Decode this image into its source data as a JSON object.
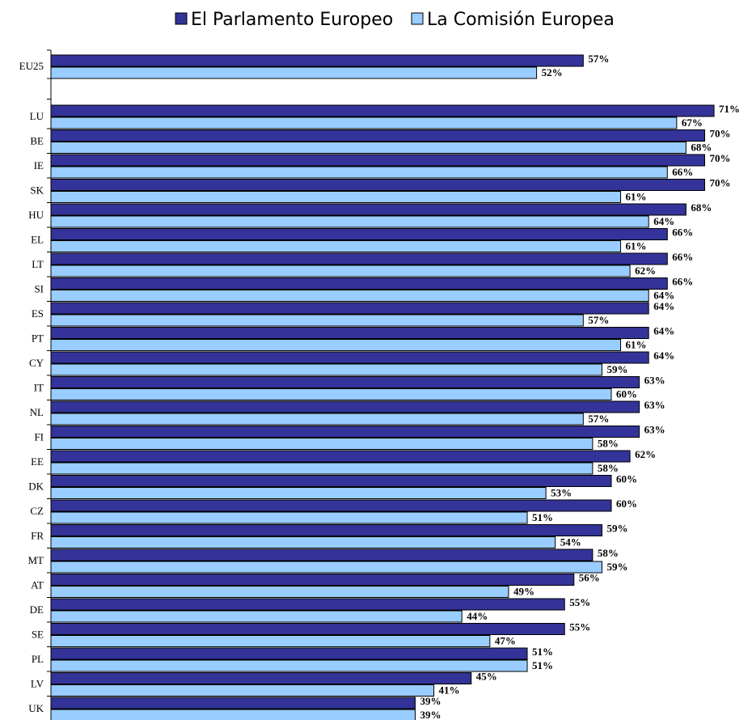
{
  "chart_data": {
    "type": "bar",
    "orientation": "horizontal",
    "legend": {
      "placement": "top"
    },
    "categories": [
      "EU25",
      "LU",
      "BE",
      "IE",
      "SK",
      "HU",
      "EL",
      "LT",
      "SI",
      "ES",
      "PT",
      "CY",
      "IT",
      "NL",
      "FI",
      "EE",
      "DK",
      "CZ",
      "FR",
      "MT",
      "AT",
      "DE",
      "SE",
      "PL",
      "LV",
      "UK"
    ],
    "series": [
      {
        "name": "El Parlamento Europeo",
        "color": "#333399",
        "values": [
          57,
          71,
          70,
          70,
          70,
          68,
          66,
          66,
          66,
          64,
          64,
          64,
          63,
          63,
          63,
          62,
          60,
          60,
          59,
          58,
          56,
          55,
          55,
          51,
          45,
          39
        ],
        "labels": [
          "57%",
          "71%",
          "70%",
          "70%",
          "70%",
          "68%",
          "66%",
          "66%",
          "66%",
          "64%",
          "64%",
          "64%",
          "63%",
          "63%",
          "63%",
          "62%",
          "60%",
          "60%",
          "59%",
          "58%",
          "56%",
          "55%",
          "55%",
          "51%",
          "45%",
          "39%"
        ]
      },
      {
        "name": "La Comisión Europea",
        "color": "#99ccff",
        "values": [
          52,
          67,
          68,
          66,
          61,
          64,
          61,
          62,
          64,
          57,
          61,
          59,
          60,
          57,
          58,
          58,
          53,
          51,
          54,
          59,
          49,
          44,
          47,
          51,
          41,
          39
        ],
        "labels": [
          "52%",
          "67%",
          "68%",
          "66%",
          "61%",
          "64%",
          "61%",
          "62%",
          "64%",
          "57%",
          "61%",
          "59%",
          "60%",
          "57%",
          "58%",
          "58%",
          "53%",
          "51%",
          "54%",
          "59%",
          "49%",
          "44%",
          "47%",
          "51%",
          "41%",
          "39%"
        ]
      }
    ]
  }
}
